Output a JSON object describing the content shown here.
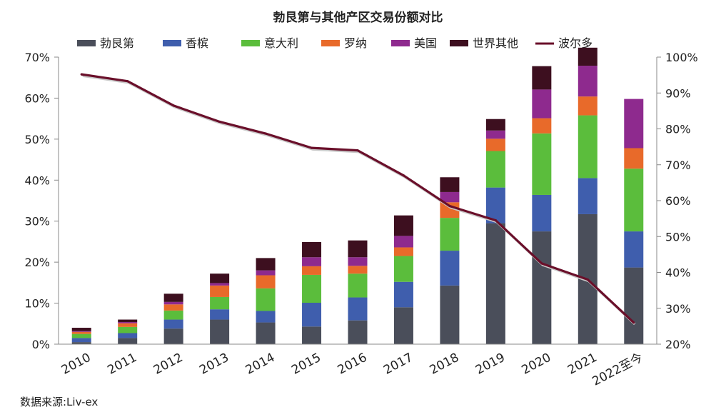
{
  "chart_data": {
    "type": "bar",
    "title": "勃艮第与其他产区交易份额对比",
    "source": "数据来源:Liv-ex",
    "categories": [
      "2010",
      "2011",
      "2012",
      "2013",
      "2014",
      "2015",
      "2016",
      "2017",
      "2018",
      "2019",
      "2020",
      "2021",
      "2022至今"
    ],
    "y_left_ticks": [
      "0%",
      "10%",
      "20%",
      "30%",
      "40%",
      "50%",
      "60%",
      "70%"
    ],
    "y_right_ticks": [
      "20%",
      "30%",
      "40%",
      "50%",
      "60%",
      "70%",
      "80%",
      "90%",
      "100%"
    ],
    "ylim_left": [
      0,
      70
    ],
    "ylim_right": [
      20,
      100
    ],
    "stacked": true,
    "grid": false,
    "legend_position": "top",
    "series": [
      {
        "name": "勃艮第",
        "type": "bar",
        "axis": "left",
        "color": "#4a4e5a",
        "values": [
          0.5,
          1.5,
          3.8,
          6.0,
          5.3,
          4.3,
          5.8,
          9.0,
          14.3,
          29.5,
          27.5,
          31.7,
          18.7
        ]
      },
      {
        "name": "香槟",
        "type": "bar",
        "axis": "left",
        "color": "#3f5ead",
        "values": [
          1.0,
          1.2,
          2.2,
          2.5,
          2.8,
          5.8,
          5.6,
          6.2,
          8.5,
          8.7,
          8.9,
          8.8,
          8.8
        ]
      },
      {
        "name": "意大利",
        "type": "bar",
        "axis": "left",
        "color": "#5bbd3c",
        "values": [
          1.0,
          1.5,
          2.2,
          3.0,
          5.5,
          6.8,
          5.8,
          6.3,
          8.0,
          8.9,
          15.0,
          15.3,
          15.3
        ]
      },
      {
        "name": "罗纳",
        "type": "bar",
        "axis": "left",
        "color": "#e86a2a",
        "values": [
          0.5,
          0.9,
          1.5,
          2.8,
          3.2,
          2.1,
          1.9,
          2.1,
          3.8,
          3.0,
          3.7,
          4.6,
          5.0
        ]
      },
      {
        "name": "美国",
        "type": "bar",
        "axis": "left",
        "color": "#8e2a8e",
        "values": [
          0.2,
          0.3,
          0.6,
          0.6,
          1.2,
          2.2,
          2.1,
          2.8,
          2.5,
          2.0,
          7.0,
          7.5,
          12.0
        ]
      },
      {
        "name": "世界其他",
        "type": "bar",
        "axis": "left",
        "color": "#3d0f1f",
        "values": [
          0.8,
          0.6,
          2.0,
          2.3,
          3.0,
          3.7,
          4.1,
          5.0,
          3.6,
          2.8,
          5.7,
          4.4,
          0
        ]
      },
      {
        "name": "波尔多",
        "type": "line",
        "axis": "right",
        "color": "#6a0f2a",
        "values": [
          95.2,
          93.3,
          86.5,
          82.0,
          78.7,
          74.7,
          74.0,
          67.0,
          58.5,
          54.5,
          42.5,
          38.0,
          26.0
        ]
      }
    ]
  }
}
